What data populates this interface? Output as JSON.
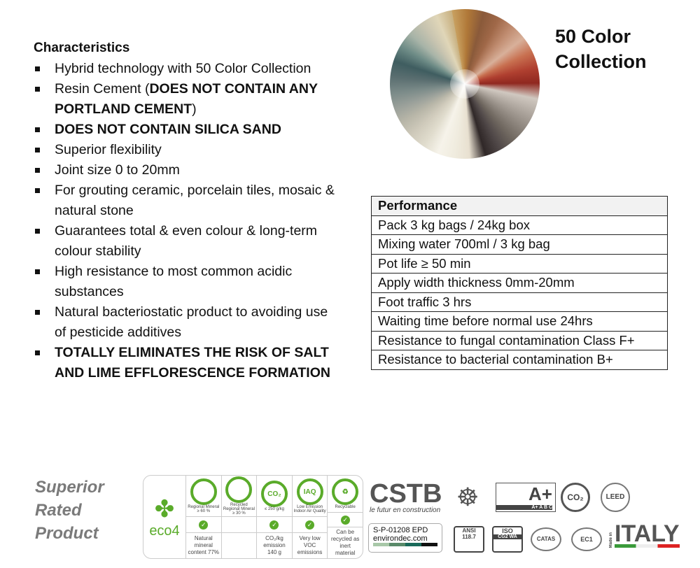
{
  "characteristics": {
    "heading": "Characteristics",
    "items": [
      {
        "text": "Hybrid technology with 50 Color Collection"
      },
      {
        "pre": "Resin Cement (",
        "bold": "DOES NOT CONTAIN ANY PORTLAND CEMENT",
        "post": ")"
      },
      {
        "bold": "DOES NOT CONTAIN SILICA SAND"
      },
      {
        "text": "Superior flexibility"
      },
      {
        "text": "Joint size 0 to 20mm"
      },
      {
        "text": "For grouting ceramic, porcelain tiles, mosaic & natural stone"
      },
      {
        "text": "Guarantees total & even colour & long-term colour stability"
      },
      {
        "text": "High resistance to most common acidic substances"
      },
      {
        "text": "Natural bacteriostatic product to avoiding use of pesticide additives"
      },
      {
        "bold": "TOTALLY ELIMINATES THE RISK OF SALT AND LIME EFFLORESCENCE FORMATION"
      }
    ]
  },
  "collection_title_1": "50 Color",
  "collection_title_2": "Collection",
  "performance": {
    "heading": "Performance",
    "rows": [
      "Pack 3 kg bags / 24kg box",
      "Mixing water  700ml / 3 kg bag",
      "Pot life ≥ 50 min",
      "Apply width thickness 0mm-20mm",
      "Foot traffic 3 hrs",
      "Waiting time before normal use 24hrs",
      "Resistance to fungal contamination Class F+",
      "Resistance to bacterial contamination B+"
    ]
  },
  "superior": [
    "Superior",
    "Rated",
    "Product"
  ],
  "eco4": {
    "logo": "eco4",
    "brand_color": "#5aab2a",
    "columns": [
      {
        "badge": "Regional Mineral ≥ 60 %",
        "icon": "mineral-icon",
        "checked": true,
        "desc": "Natural mineral content 77%"
      },
      {
        "badge": "Recycled Regional Mineral ≥ 30 %",
        "icon": "recycled-icon",
        "checked": false,
        "desc": ""
      },
      {
        "badge": "≤ 250 g/kg",
        "icon": "co2-icon",
        "symbol": "CO₂",
        "checked": true,
        "desc": "CO₂/kg emission 140 g"
      },
      {
        "badge": "Low Emission Indoor Air Quality",
        "icon": "iaq-icon",
        "symbol": "IAQ",
        "checked": true,
        "desc": "Very low VOC emissions"
      },
      {
        "badge": "Recyclable",
        "icon": "recycle-icon",
        "symbol": "♻",
        "checked": true,
        "desc": "Can be recycled as inert material"
      }
    ]
  },
  "certs": {
    "cstb": "CSTB",
    "cstb_sub": "le futur en construction",
    "aplus": "A+",
    "aplus_scale": "A+ A B C",
    "co2": "CO₂",
    "leed": "LEED",
    "epd_code": "S-P-01208 EPD",
    "epd_site": "environdec.com",
    "ansi": "ANSI 118.7",
    "iso": "ISO",
    "iso_sub": "CG2 WA",
    "catas": "CATAS",
    "ec1": "EC1",
    "made_in": "Made in",
    "italy": "ITALY"
  }
}
